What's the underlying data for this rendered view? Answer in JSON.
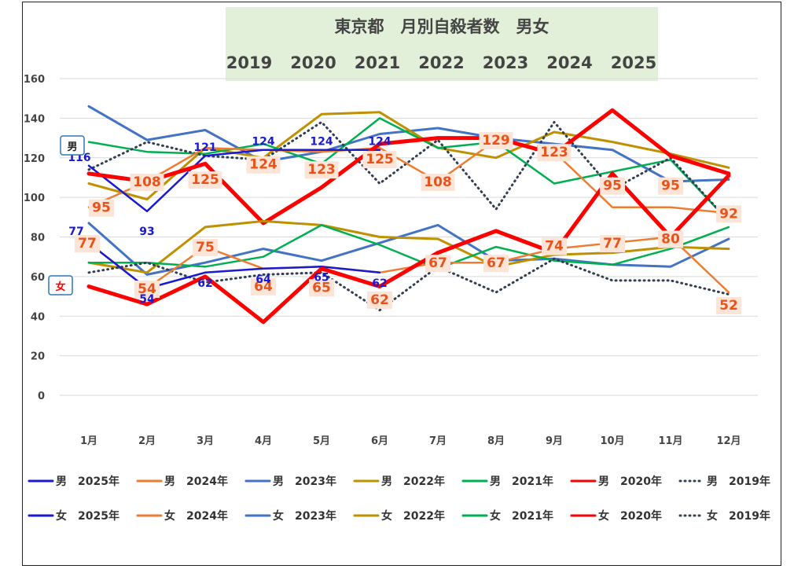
{
  "chart_data": {
    "type": "line",
    "title": "東京都　月別自殺者数　男女",
    "subtitle": [
      "2019",
      "2020",
      "2021",
      "2022",
      "2023",
      "2024",
      "2025"
    ],
    "categories": [
      "1月",
      "2月",
      "3月",
      "4月",
      "5月",
      "6月",
      "7月",
      "8月",
      "9月",
      "10月",
      "11月",
      "12月"
    ],
    "ylim": [
      0,
      160
    ],
    "yticks": [
      0,
      20,
      40,
      60,
      80,
      100,
      120,
      140,
      160
    ],
    "grid": true,
    "legend_position": "bottom",
    "tags": {
      "male": "男",
      "female": "女"
    },
    "series": [
      {
        "name": "男　2025年",
        "sex": "男",
        "year": "2025年",
        "color": "#1a1ad0",
        "width": 2.5,
        "dash": false,
        "values": [
          116,
          93,
          121,
          124,
          124,
          124,
          null,
          null,
          null,
          null,
          null,
          null
        ]
      },
      {
        "name": "男　2024年",
        "sex": "男",
        "year": "2024年",
        "color": "#ed7d31",
        "width": 2.5,
        "dash": false,
        "values": [
          95,
          108,
          125,
          124,
          123,
          125,
          108,
          129,
          123,
          95,
          95,
          92
        ]
      },
      {
        "name": "男　2023年",
        "sex": "男",
        "year": "2023年",
        "color": "#4472c4",
        "width": 3,
        "dash": false,
        "values": [
          146,
          129,
          134,
          118,
          123,
          132,
          135,
          130,
          127,
          124,
          108,
          109
        ]
      },
      {
        "name": "男　2022年",
        "sex": "男",
        "year": "2022年",
        "color": "#bf9000",
        "width": 3,
        "dash": false,
        "values": [
          107,
          99,
          125,
          120,
          142,
          143,
          125,
          120,
          133,
          128,
          122,
          115
        ]
      },
      {
        "name": "男　2021年",
        "sex": "男",
        "year": "2021年",
        "color": "#00b050",
        "width": 2.5,
        "dash": false,
        "values": [
          128,
          123,
          122,
          127,
          117,
          140,
          125,
          128,
          107,
          113,
          119,
          88
        ]
      },
      {
        "name": "男　2020年",
        "sex": "男",
        "year": "2020年",
        "color": "#ff0000",
        "width": 5,
        "dash": false,
        "values": [
          112,
          108,
          117,
          87,
          105,
          127,
          130,
          130,
          122,
          144,
          121,
          112
        ]
      },
      {
        "name": "男　2019年",
        "sex": "男",
        "year": "2019年",
        "color": "#333f50",
        "width": 3,
        "dash": true,
        "values": [
          114,
          128,
          121,
          119,
          138,
          107,
          129,
          94,
          138,
          104,
          120,
          88
        ]
      },
      {
        "name": "女　2025年",
        "sex": "女",
        "year": "2025年",
        "color": "#1a1ad0",
        "width": 2.5,
        "dash": false,
        "values": [
          77,
          54,
          62,
          64,
          65,
          62,
          null,
          null,
          null,
          null,
          null,
          null
        ]
      },
      {
        "name": "女　2024年",
        "sex": "女",
        "year": "2024年",
        "color": "#ed7d31",
        "width": 2.5,
        "dash": false,
        "values": [
          77,
          54,
          75,
          64,
          65,
          62,
          67,
          67,
          74,
          77,
          80,
          52
        ]
      },
      {
        "name": "女　2023年",
        "sex": "女",
        "year": "2023年",
        "color": "#4472c4",
        "width": 3,
        "dash": false,
        "values": [
          87,
          61,
          67,
          74,
          68,
          77,
          86,
          68,
          69,
          66,
          65,
          79
        ]
      },
      {
        "name": "女　2022年",
        "sex": "女",
        "year": "2022年",
        "color": "#bf9000",
        "width": 3,
        "dash": false,
        "values": [
          67,
          62,
          85,
          88,
          86,
          80,
          79,
          65,
          71,
          72,
          75,
          74
        ]
      },
      {
        "name": "女　2021年",
        "sex": "女",
        "year": "2021年",
        "color": "#00b050",
        "width": 2.5,
        "dash": false,
        "values": [
          67,
          67,
          65,
          70,
          86,
          76,
          64,
          75,
          68,
          66,
          74,
          85
        ]
      },
      {
        "name": "女　2020年",
        "sex": "女",
        "year": "2020年",
        "color": "#ff0000",
        "width": 5,
        "dash": false,
        "values": [
          55,
          46,
          60,
          37,
          64,
          55,
          72,
          83,
          72,
          112,
          80,
          111
        ]
      },
      {
        "name": "女　2019年",
        "sex": "女",
        "year": "2019年",
        "color": "#333f50",
        "width": 3,
        "dash": true,
        "values": [
          62,
          67,
          57,
          61,
          62,
          43,
          65,
          52,
          69,
          58,
          58,
          51
        ]
      }
    ],
    "data_labels": [
      {
        "series": "男　2024年",
        "index": 0,
        "value": "95"
      },
      {
        "series": "男　2024年",
        "index": 1,
        "value": "108"
      },
      {
        "series": "男　2024年",
        "index": 2,
        "value": "125"
      },
      {
        "series": "男　2024年",
        "index": 3,
        "value": "124"
      },
      {
        "series": "男　2024年",
        "index": 4,
        "value": "123"
      },
      {
        "series": "男　2024年",
        "index": 5,
        "value": "125"
      },
      {
        "series": "男　2024年",
        "index": 6,
        "value": "108"
      },
      {
        "series": "男　2024年",
        "index": 7,
        "value": "129"
      },
      {
        "series": "男　2024年",
        "index": 8,
        "value": "123"
      },
      {
        "series": "男　2024年",
        "index": 9,
        "value": "95"
      },
      {
        "series": "男　2024年",
        "index": 10,
        "value": "95"
      },
      {
        "series": "男　2024年",
        "index": 11,
        "value": "92"
      },
      {
        "series": "女　2024年",
        "index": 0,
        "value": "77"
      },
      {
        "series": "女　2024年",
        "index": 1,
        "value": "54"
      },
      {
        "series": "女　2024年",
        "index": 2,
        "value": "75"
      },
      {
        "series": "女　2024年",
        "index": 3,
        "value": "64"
      },
      {
        "series": "女　2024年",
        "index": 4,
        "value": "65"
      },
      {
        "series": "女　2024年",
        "index": 5,
        "value": "62"
      },
      {
        "series": "女　2024年",
        "index": 6,
        "value": "67"
      },
      {
        "series": "女　2024年",
        "index": 7,
        "value": "67"
      },
      {
        "series": "女　2024年",
        "index": 8,
        "value": "74"
      },
      {
        "series": "女　2024年",
        "index": 9,
        "value": "77"
      },
      {
        "series": "女　2024年",
        "index": 10,
        "value": "80"
      },
      {
        "series": "女　2024年",
        "index": 11,
        "value": "52"
      },
      {
        "series": "男　2025年",
        "index": 0,
        "value": "116"
      },
      {
        "series": "男　2025年",
        "index": 1,
        "value": "93"
      },
      {
        "series": "男　2025年",
        "index": 2,
        "value": "121"
      },
      {
        "series": "男　2025年",
        "index": 3,
        "value": "124"
      },
      {
        "series": "男　2025年",
        "index": 4,
        "value": "124"
      },
      {
        "series": "男　2025年",
        "index": 5,
        "value": "124"
      },
      {
        "series": "女　2025年",
        "index": 0,
        "value": "77"
      },
      {
        "series": "女　2025年",
        "index": 1,
        "value": "54"
      },
      {
        "series": "女　2025年",
        "index": 2,
        "value": "62"
      },
      {
        "series": "女　2025年",
        "index": 3,
        "value": "64"
      },
      {
        "series": "女　2025年",
        "index": 4,
        "value": "65"
      },
      {
        "series": "女　2025年",
        "index": 5,
        "value": "62"
      }
    ]
  }
}
